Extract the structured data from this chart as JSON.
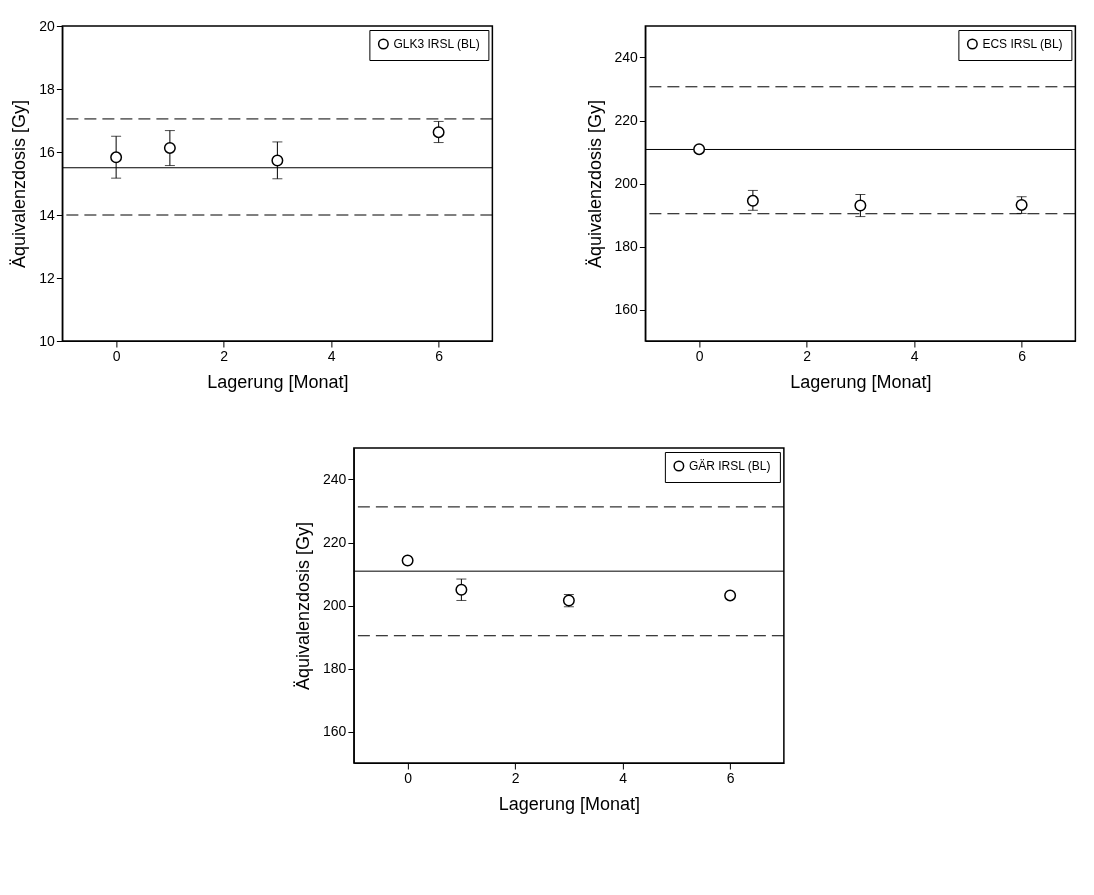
{
  "chart_data": [
    {
      "type": "scatter",
      "xlabel": "Lagerung [Monat]",
      "ylabel": "Äquivalenzdosis [Gy]",
      "xlim": [
        -1,
        7
      ],
      "xticks": [
        0,
        2,
        4,
        6
      ],
      "ylim": [
        10,
        20
      ],
      "yticks": [
        10,
        12,
        14,
        16,
        18,
        20
      ],
      "marker": "circle",
      "legend": "top right",
      "grid": false,
      "series": [
        {
          "name": "GLK3 IRSL (BL)",
          "color": "#000000",
          "x": [
            0,
            1,
            3,
            6
          ],
          "values": [
            15.83,
            16.13,
            15.73,
            16.63
          ],
          "errors": [
            [
              15.17,
              16.5
            ],
            [
              15.57,
              16.68
            ],
            [
              15.15,
              16.32
            ],
            [
              16.3,
              16.97
            ]
          ]
        }
      ],
      "ref_lines": [
        {
          "axis": "y",
          "value": 15.5,
          "line_style": "solid",
          "color": "#000000"
        },
        {
          "axis": "y",
          "value": 17.05,
          "line_style": "dashed",
          "color": "#000000"
        },
        {
          "axis": "y",
          "value": 14.0,
          "line_style": "dashed",
          "color": "#000000"
        }
      ]
    },
    {
      "type": "scatter",
      "xlabel": "Lagerung [Monat]",
      "ylabel": "Äquivalenzdosis [Gy]",
      "xlim": [
        -1,
        7
      ],
      "xticks": [
        0,
        2,
        4,
        6
      ],
      "ylim": [
        150,
        250
      ],
      "yticks": [
        160,
        180,
        200,
        220,
        240
      ],
      "marker": "circle",
      "legend": "top right",
      "grid": false,
      "series": [
        {
          "name": "ECS IRSL (BL)",
          "color": "#000000",
          "x": [
            0,
            1,
            3,
            6
          ],
          "values": [
            210.9,
            194.5,
            193,
            193.2
          ],
          "errors": [
            null,
            [
              191.5,
              197.8
            ],
            [
              189.5,
              196.5
            ],
            [
              190.5,
              195.8
            ]
          ]
        }
      ],
      "ref_lines": [
        {
          "axis": "y",
          "value": 210.8,
          "line_style": "solid",
          "color": "#000000"
        },
        {
          "axis": "y",
          "value": 230.7,
          "line_style": "dashed",
          "color": "#000000"
        },
        {
          "axis": "y",
          "value": 190.4,
          "line_style": "dashed",
          "color": "#000000"
        }
      ]
    },
    {
      "type": "scatter",
      "xlabel": "Lagerung [Monat]",
      "ylabel": "Äquivalenzdosis [Gy]",
      "xlim": [
        -1,
        7
      ],
      "xticks": [
        0,
        2,
        4,
        6
      ],
      "ylim": [
        150,
        250
      ],
      "yticks": [
        160,
        180,
        200,
        220,
        240
      ],
      "marker": "circle",
      "legend": "top right",
      "grid": false,
      "series": [
        {
          "name": "GÄR IRSL (BL)",
          "color": "#000000",
          "x": [
            0,
            1,
            3,
            6
          ],
          "values": [
            214.3,
            205.0,
            201.6,
            203.2
          ],
          "errors": [
            null,
            [
              201.6,
              208.4
            ],
            [
              199.6,
              203.5
            ],
            null
          ]
        }
      ],
      "ref_lines": [
        {
          "axis": "y",
          "value": 210.9,
          "line_style": "solid",
          "color": "#000000"
        },
        {
          "axis": "y",
          "value": 231.3,
          "line_style": "dashed",
          "color": "#000000"
        },
        {
          "axis": "y",
          "value": 190.4,
          "line_style": "dashed",
          "color": "#000000"
        }
      ]
    }
  ]
}
